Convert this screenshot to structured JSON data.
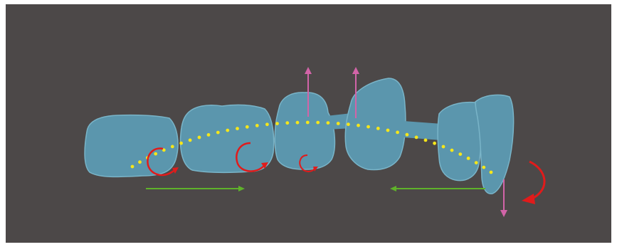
{
  "colors": {
    "page_background": "#ffffff",
    "canvas_background": "#4c4848",
    "tooth_fill": "#5b96ad",
    "tooth_outline": "#79b4c8",
    "arch_dots": "#f5e61a",
    "rotation_arrows": "#e11b1b",
    "translation_arrows": "#5fb22a",
    "vertical_arrows": "#d264a8"
  },
  "diagram": {
    "teeth_count": 6,
    "arch_dot_count": 40,
    "rotation_arrow_count": 4,
    "translation_arrow_count": 2,
    "vertical_arrow_count": 3,
    "labels": []
  }
}
